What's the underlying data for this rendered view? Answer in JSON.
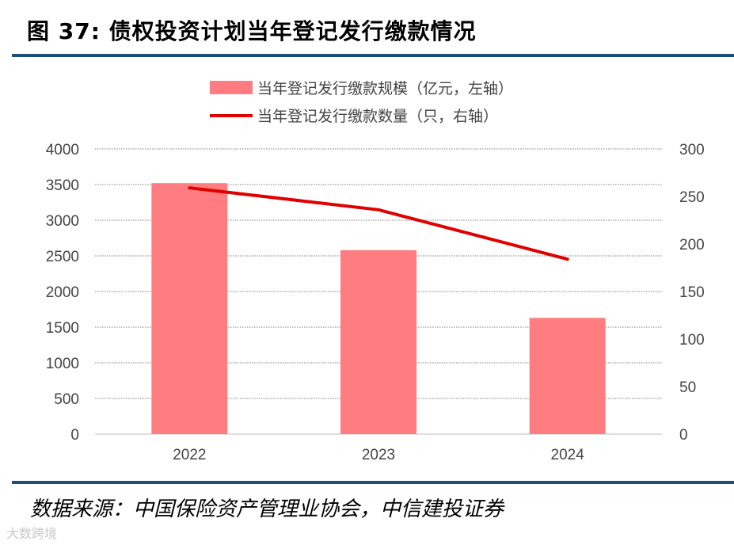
{
  "header": {
    "figure_label": "图 37:",
    "title": "债权投资计划当年登记发行缴款情况"
  },
  "footer": {
    "source": "数据来源：中国保险资产管理业协会，中信建投证券",
    "watermark": "大数跨境"
  },
  "colors": {
    "bar": "#ff7c80",
    "line": "#e00000",
    "rule": "#1f4e79",
    "grid": "#7f7f7f"
  },
  "chart_data": {
    "type": "bar+line",
    "categories": [
      "2022",
      "2023",
      "2024"
    ],
    "series": [
      {
        "name": "当年登记发行缴款规模（亿元，左轴）",
        "type": "bar",
        "axis": "left",
        "values": [
          3520,
          2580,
          1630
        ]
      },
      {
        "name": "当年登记发行缴款数量（只，右轴）",
        "type": "line",
        "axis": "right",
        "values": [
          259,
          236,
          184
        ]
      }
    ],
    "left_axis": {
      "ylim": [
        0,
        4000
      ],
      "ticks": [
        "0",
        "500",
        "1000",
        "1500",
        "2000",
        "2500",
        "3000",
        "3500",
        "4000"
      ]
    },
    "right_axis": {
      "ylim": [
        0,
        300
      ],
      "ticks": [
        "0",
        "50",
        "100",
        "150",
        "200",
        "250",
        "300"
      ]
    },
    "legend_position": "top-center",
    "grid": "dotted horizontal"
  }
}
